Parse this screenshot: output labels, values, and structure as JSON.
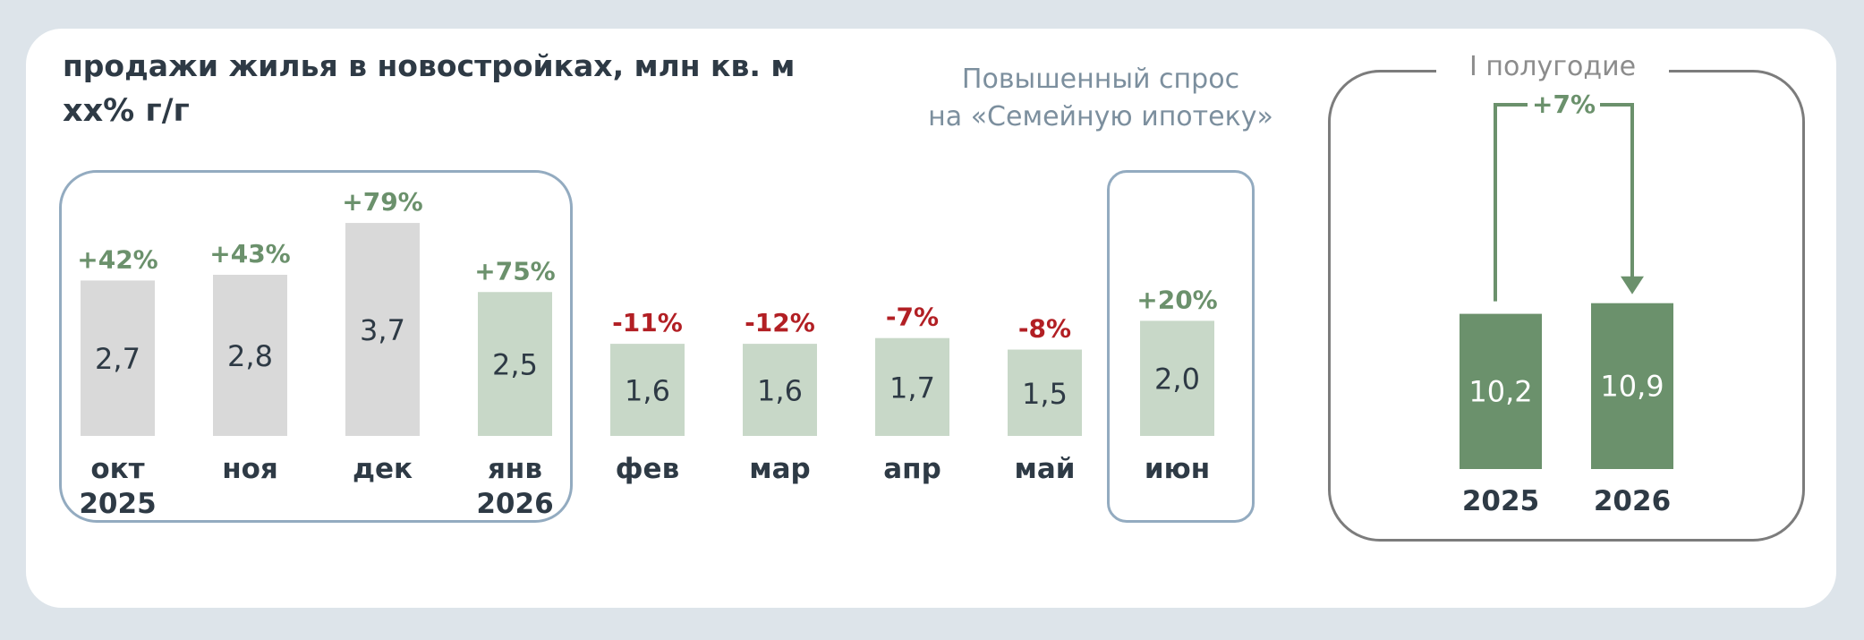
{
  "title": "продажи жилья в новостройках, млн кв. м",
  "subtitle": "хх% г/г",
  "note": {
    "line1": "Повышенный спрос",
    "line2": "на «Семейную ипотеку»"
  },
  "colors": {
    "gray_bar": "#d9d9d9",
    "light_green_bar": "#c8d8c8",
    "dark_green_bar": "#6b916c",
    "positive": "#6b916c",
    "negative": "#b21f24",
    "frame_blue": "#93abc0",
    "frame_gray": "#7c7c7c"
  },
  "chart_data": [
    {
      "type": "bar",
      "title": "продажи жилья в новостройках, млн кв. м",
      "unit": "млн кв. м",
      "categories": [
        [
          "окт",
          "2025"
        ],
        [
          "ноя",
          ""
        ],
        [
          "дек",
          ""
        ],
        [
          "янв",
          "2026"
        ],
        [
          "фев",
          ""
        ],
        [
          "мар",
          ""
        ],
        [
          "апр",
          ""
        ],
        [
          "май",
          ""
        ],
        [
          "июн",
          ""
        ]
      ],
      "values": [
        2.7,
        2.8,
        3.7,
        2.5,
        1.6,
        1.6,
        1.7,
        1.5,
        2.0
      ],
      "value_labels": [
        "2,7",
        "2,8",
        "3,7",
        "2,5",
        "1,6",
        "1,6",
        "1,7",
        "1,5",
        "2,0"
      ],
      "yoy_labels": [
        "+42%",
        "+43%",
        "+79%",
        "+75%",
        "-11%",
        "-12%",
        "-7%",
        "-8%",
        "+20%"
      ],
      "yoy_sign": [
        "pos",
        "pos",
        "pos",
        "pos",
        "neg",
        "neg",
        "neg",
        "neg",
        "pos"
      ],
      "bar_style": [
        "gray",
        "gray",
        "gray",
        "light",
        "light",
        "light",
        "light",
        "light",
        "light"
      ]
    },
    {
      "type": "bar",
      "title": "I полугодие",
      "categories": [
        "2025",
        "2026"
      ],
      "values": [
        10.2,
        10.9
      ],
      "value_labels": [
        "10,2",
        "10,9"
      ],
      "change_label": "+7%"
    }
  ]
}
